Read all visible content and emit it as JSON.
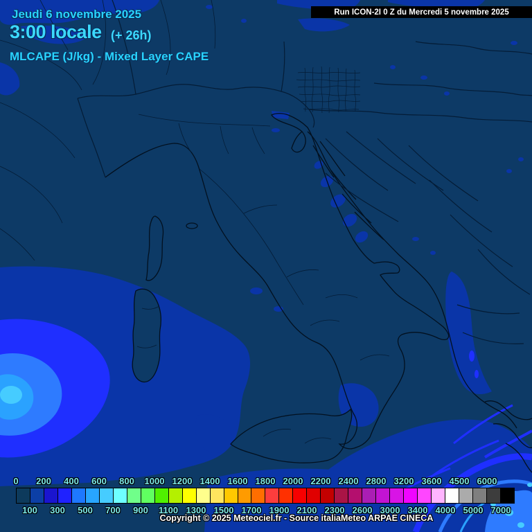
{
  "header": {
    "date_line": "Jeudi 6 novembre 2025",
    "time_line": "3:00 locale",
    "time_offset": "(+ 26h)",
    "param_line": "MLCAPE (J/kg) - Mixed Layer CAPE",
    "run_line": "Run ICON-2I 0 Z du Mercredi 5 novembre 2025"
  },
  "footer": {
    "copyright": "Copyright © 2025 Meteociel.fr - Source italiaMeteo ARPAE CINECA"
  },
  "colors": {
    "accent_cyan": "#29d3ff",
    "scale_label_cyan": "#7be8e8",
    "map_background": "#0d3a66",
    "cape_level_1": "#0a35a8",
    "cape_level_2": "#1f2fff",
    "cape_level_3": "#2e7bff",
    "cape_level_4": "#2aa2ff",
    "cape_level_5": "#46ccff",
    "border_line": "#041c36",
    "run_bar_background": "#000000",
    "run_bar_text": "#ffffff"
  },
  "scale": {
    "unit": "J/kg",
    "top_labels": [
      "0",
      "200",
      "400",
      "600",
      "800",
      "1000",
      "1200",
      "1400",
      "1600",
      "1800",
      "2000",
      "2200",
      "2400",
      "2800",
      "3200",
      "3600",
      "4500",
      "6000"
    ],
    "bottom_labels": [
      "100",
      "300",
      "500",
      "700",
      "900",
      "1100",
      "1300",
      "1500",
      "1700",
      "1900",
      "2100",
      "2300",
      "2600",
      "3000",
      "3400",
      "4000",
      "5000",
      "7000"
    ],
    "cell_colors": [
      "#0d3a5c",
      "#0c3fa6",
      "#1a15cf",
      "#1f22ff",
      "#1e78ff",
      "#28a5ff",
      "#46ccff",
      "#6effff",
      "#70ff8a",
      "#60ff60",
      "#50f000",
      "#b4f000",
      "#ffff00",
      "#ffff8c",
      "#ffe55e",
      "#ffc800",
      "#ff9b00",
      "#ff6e00",
      "#fc3d3d",
      "#ff3000",
      "#f70000",
      "#e00000",
      "#c30000",
      "#aa1446",
      "#b40f6e",
      "#aa1eb4",
      "#c214d2",
      "#d814e6",
      "#f005ff",
      "#ff46ff",
      "#ffb4ff",
      "#ffffff",
      "#ababab",
      "#7f7f7f",
      "#3d3d3d",
      "#000000"
    ]
  }
}
